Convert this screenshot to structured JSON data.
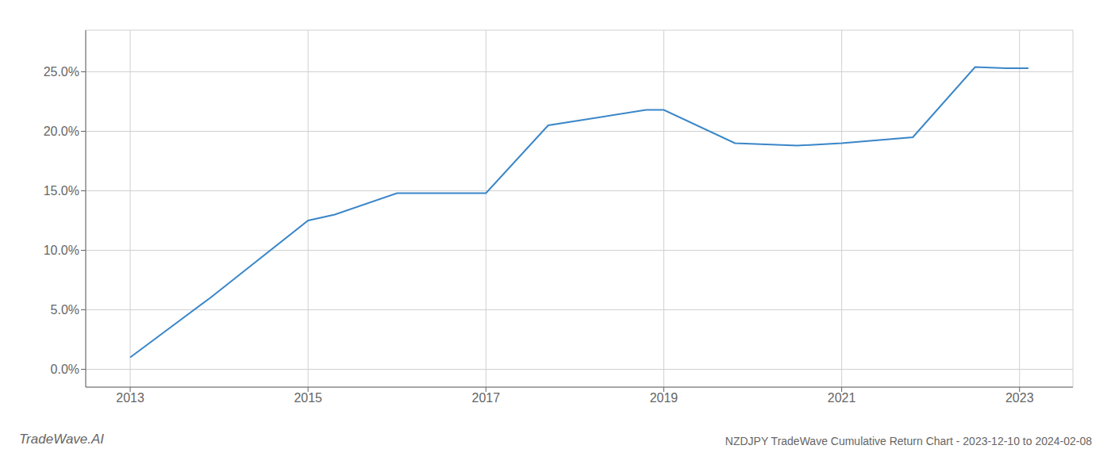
{
  "chart_data": {
    "type": "line",
    "title": "NZDJPY TradeWave Cumulative Return Chart - 2023-12-10 to 2024-02-08",
    "annotations": [
      "TradeWave.AI"
    ],
    "x": [
      2013.0,
      2013.9,
      2015.0,
      2015.3,
      2016.0,
      2017.0,
      2017.7,
      2018.8,
      2019.0,
      2019.8,
      2020.5,
      2021.0,
      2021.8,
      2022.5,
      2022.85,
      2023.1
    ],
    "values": [
      1.0,
      6.0,
      12.5,
      13.0,
      14.8,
      14.8,
      20.5,
      21.8,
      21.8,
      19.0,
      18.8,
      19.0,
      19.5,
      25.4,
      25.3,
      25.3
    ],
    "color": "#3a86c8",
    "xlim": [
      2012.5,
      2023.6
    ],
    "ylim": [
      -1.5,
      28.5
    ],
    "xticks": [
      2013,
      2015,
      2017,
      2019,
      2021,
      2023
    ],
    "yticks": [
      {
        "value": 0.0,
        "label": "0.0%"
      },
      {
        "value": 5.0,
        "label": "5.0%"
      },
      {
        "value": 10.0,
        "label": "10.0%"
      },
      {
        "value": 15.0,
        "label": "15.0%"
      },
      {
        "value": 20.0,
        "label": "20.0%"
      },
      {
        "value": 25.0,
        "label": "25.0%"
      }
    ],
    "grid": true
  }
}
